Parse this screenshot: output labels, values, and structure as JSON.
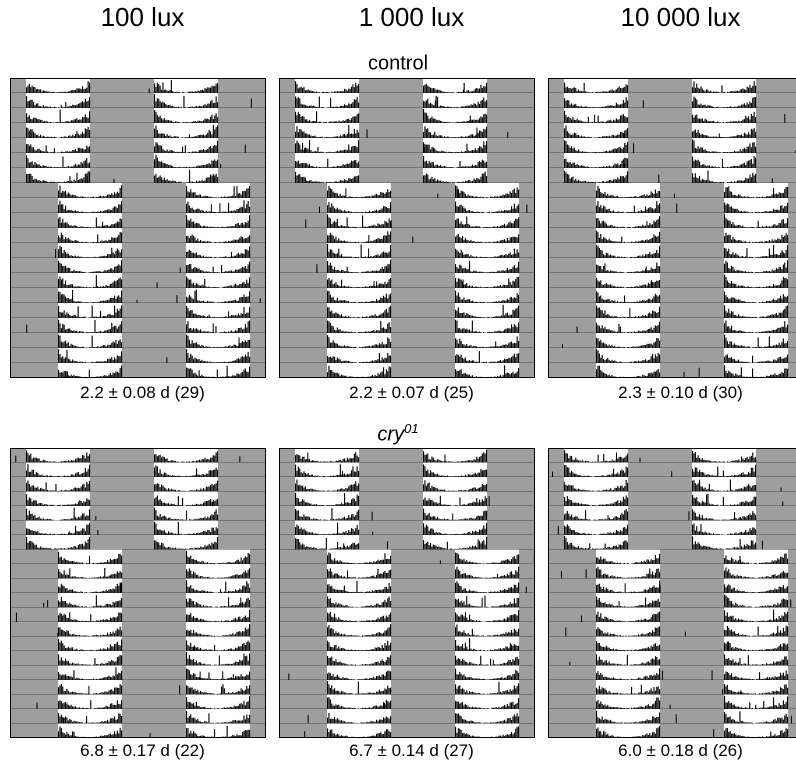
{
  "columns": [
    "100 lux",
    "1 000 lux",
    "10 000 lux"
  ],
  "groups": [
    {
      "label": "control",
      "label_sup": "",
      "italic": false,
      "captions": [
        "2.2 ± 0.08 d (29)",
        "2.2 ± 0.07 d (25)",
        "2.3 ± 0.10 d (30)"
      ]
    },
    {
      "label": "cry",
      "label_sup": "01",
      "italic": true,
      "captions": [
        "6.8 ± 0.17 d (22)",
        "6.7 ± 0.14 d (27)",
        "6.0 ± 0.18 d (26)"
      ]
    }
  ],
  "colors": {
    "dark_phase": "#9e9e9e",
    "light_phase": "#ffffff",
    "activity": "#000000",
    "border": "#000000"
  },
  "actogram": {
    "rows_before_shift": 7,
    "rows_after_shift": 13,
    "days_per_row": 2,
    "shift_hours": 6
  }
}
